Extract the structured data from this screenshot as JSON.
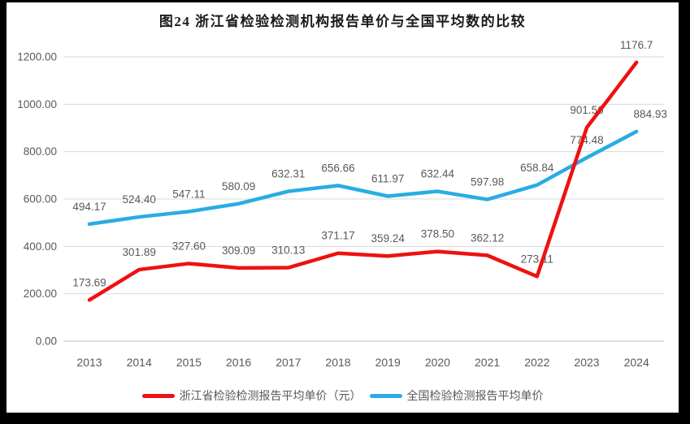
{
  "frame": {
    "background_color": "#000000",
    "surface_color": "#ffffff"
  },
  "chart_data": {
    "type": "line",
    "title": "图24  浙江省检验检测机构报告单价与全国平均数的比较",
    "categories": [
      "2013",
      "2014",
      "2015",
      "2016",
      "2017",
      "2018",
      "2019",
      "2020",
      "2021",
      "2022",
      "2023",
      "2024"
    ],
    "series": [
      {
        "name": "浙江省检验检测报告平均单价（元）",
        "color": "#ee1111",
        "values": [
          173.69,
          301.89,
          327.6,
          309.09,
          310.13,
          371.17,
          359.24,
          378.5,
          362.12,
          273.11,
          901.56,
          1176.7
        ],
        "labels": [
          "173.69",
          "301.89",
          "327.60",
          "309.09",
          "310.13",
          "371.17",
          "359.24",
          "378.50",
          "362.12",
          "273.11",
          "901.56",
          "1176.7"
        ]
      },
      {
        "name": "全国检验检测报告平均单价",
        "color": "#29ace3",
        "values": [
          494.17,
          524.4,
          547.11,
          580.09,
          632.31,
          656.66,
          611.97,
          632.44,
          597.98,
          658.84,
          774.48,
          884.93
        ],
        "labels": [
          "494.17",
          "524.40",
          "547.11",
          "580.09",
          "632.31",
          "656.66",
          "611.97",
          "632.44",
          "597.98",
          "658.84",
          "774.48",
          "884.93"
        ]
      }
    ],
    "y_axis": {
      "min": 0,
      "max": 1200,
      "step": 200,
      "tick_labels": [
        "0.00",
        "200.00",
        "400.00",
        "600.00",
        "800.00",
        "1000.00",
        "1200.00"
      ]
    },
    "grid": true,
    "legend_position": "bottom",
    "axis_label_color": "#595959",
    "data_label_color": "#595959",
    "gridline_color": "#d9d9d9",
    "baseline_color": "#bfbfbf"
  }
}
